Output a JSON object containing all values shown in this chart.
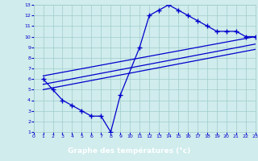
{
  "xlabel": "Graphe des températures (°c)",
  "bg_color": "#d0ecec",
  "grid_color": "#a0cccc",
  "line_color": "#0000cc",
  "label_bg": "#2222aa",
  "label_fg": "#ffffff",
  "xlim": [
    0,
    23
  ],
  "ylim": [
    1,
    13
  ],
  "xticks": [
    0,
    1,
    2,
    3,
    4,
    5,
    6,
    7,
    8,
    9,
    10,
    11,
    12,
    13,
    14,
    15,
    16,
    17,
    18,
    19,
    20,
    21,
    22,
    23
  ],
  "yticks": [
    1,
    2,
    3,
    4,
    5,
    6,
    7,
    8,
    9,
    10,
    11,
    12,
    13
  ],
  "curve_x": [
    1,
    2,
    3,
    4,
    5,
    6,
    7,
    8,
    9,
    11,
    12,
    13,
    14,
    15,
    16,
    17,
    18,
    19,
    20,
    21,
    22,
    23
  ],
  "curve_y": [
    6.0,
    5.0,
    4.0,
    3.5,
    3.0,
    2.5,
    2.5,
    1.0,
    4.5,
    9.0,
    12.0,
    12.5,
    13.0,
    12.5,
    12.0,
    11.5,
    11.0,
    10.5,
    10.5,
    10.5,
    10.0,
    10.0
  ],
  "line1_x": [
    1,
    23
  ],
  "line1_y": [
    6.3,
    10.0
  ],
  "line2_x": [
    1,
    23
  ],
  "line2_y": [
    5.5,
    9.3
  ],
  "line3_x": [
    1,
    23
  ],
  "line3_y": [
    5.0,
    8.8
  ]
}
